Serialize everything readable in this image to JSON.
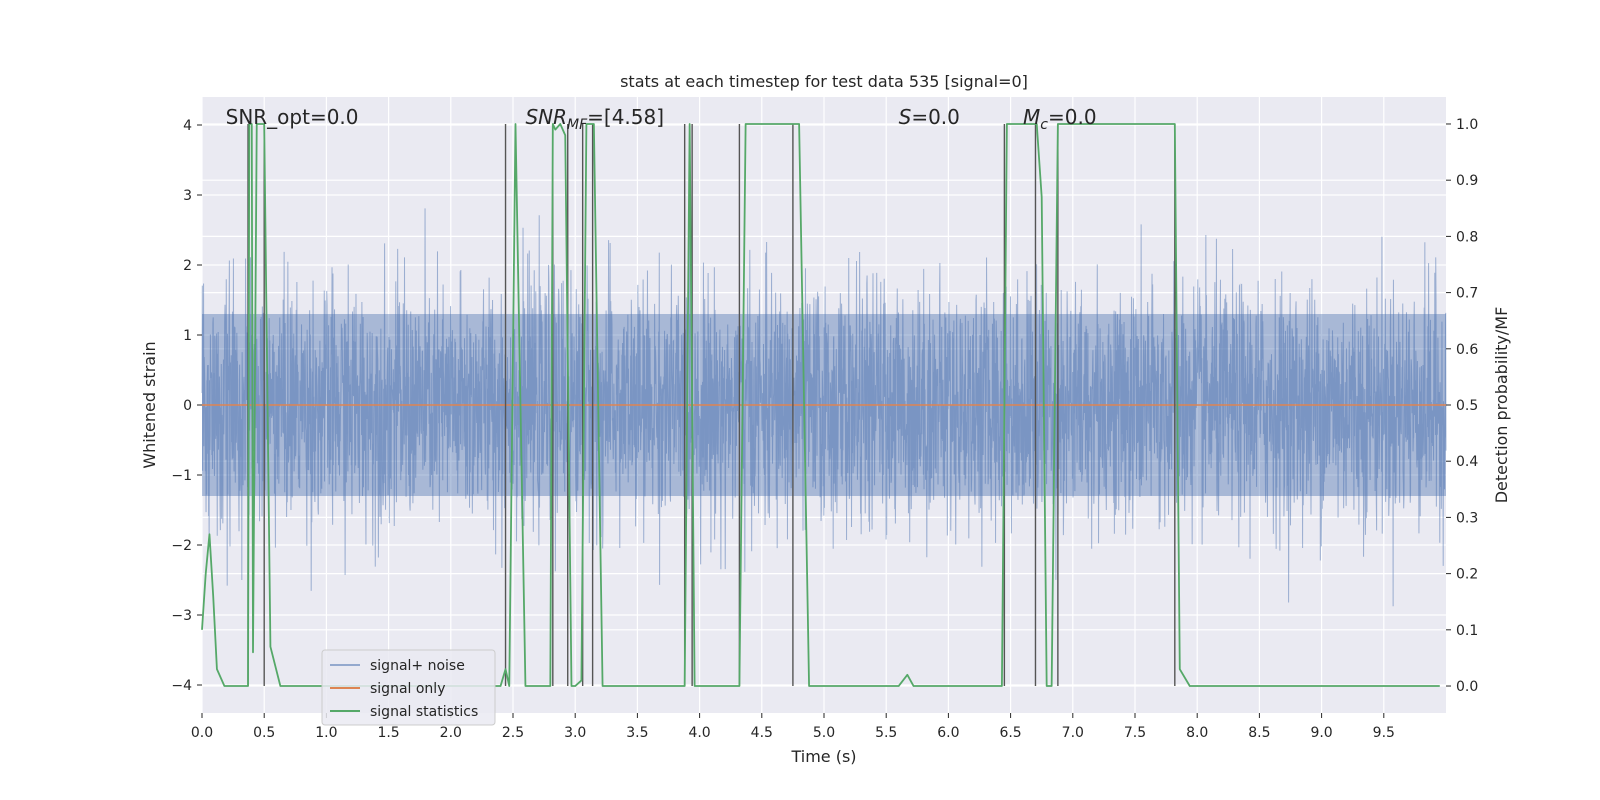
{
  "chart_data": {
    "type": "line",
    "title": "stats at each timestep for test data 535 [signal=0]",
    "xlabel": "Time (s)",
    "ylabel_left": "Whitened strain",
    "ylabel_right": "Detection probability/MF",
    "xlim": [
      0.0,
      10.0
    ],
    "ylim_left": [
      -4.4,
      4.4
    ],
    "ylim_right": [
      -0.048,
      1.048
    ],
    "x_ticks": [
      0.0,
      0.5,
      1.0,
      1.5,
      2.0,
      2.5,
      3.0,
      3.5,
      4.0,
      4.5,
      5.0,
      5.5,
      6.0,
      6.5,
      7.0,
      7.5,
      8.0,
      8.5,
      9.0,
      9.5
    ],
    "y_ticks_left": [
      -4,
      -3,
      -2,
      -1,
      0,
      1,
      2,
      3,
      4
    ],
    "y_ticks_right": [
      0.0,
      0.1,
      0.2,
      0.3,
      0.4,
      0.5,
      0.6,
      0.7,
      0.8,
      0.9,
      1.0
    ],
    "grid": true,
    "background": "#EAEAF2",
    "annotations": [
      {
        "id": "snr_opt",
        "text": "SNR_opt=0.0",
        "x": 0.19
      },
      {
        "id": "snr_mf",
        "text": "=[4.58]",
        "math": "SNR",
        "sub": "MF",
        "x": 2.6
      },
      {
        "id": "s",
        "text": "=0.0",
        "math": "S",
        "x": 5.6
      },
      {
        "id": "mc",
        "text": "=0.0",
        "math": "M",
        "sub": "c",
        "x": 6.6
      }
    ],
    "legend": {
      "placement": "lower-left",
      "entries": [
        "signal+ noise",
        "signal only",
        "signal statistics"
      ]
    },
    "series": [
      {
        "name": "signal+ noise",
        "color": "#4C72B0",
        "axis": "left",
        "kind": "dense-noise",
        "duration": 10.0,
        "typical_abs_range": [
          1.3,
          2.3
        ],
        "max_abs": 4.0
      },
      {
        "name": "signal only",
        "color": "#DD8452",
        "axis": "left",
        "x": [
          0.0,
          10.0
        ],
        "y": [
          0.0,
          0.0
        ]
      },
      {
        "name": "signal statistics",
        "color": "#55A868",
        "axis": "right",
        "x": [
          0.0,
          0.03,
          0.06,
          0.09,
          0.12,
          0.18,
          0.37,
          0.38,
          0.4,
          0.41,
          0.44,
          0.47,
          0.5,
          0.55,
          0.63,
          0.9,
          2.4,
          2.44,
          2.47,
          2.52,
          2.6,
          2.7,
          2.8,
          2.82,
          2.84,
          2.88,
          2.92,
          2.97,
          3.0,
          3.05,
          3.09,
          3.15,
          3.22,
          3.5,
          3.6,
          3.88,
          3.92,
          3.96,
          4.05,
          4.1,
          4.28,
          4.32,
          4.37,
          4.4,
          4.7,
          4.75,
          4.8,
          4.88,
          5.0,
          5.6,
          5.67,
          5.72,
          5.8,
          6.4,
          6.43,
          6.47,
          6.52,
          6.68,
          6.71,
          6.75,
          6.79,
          6.83,
          6.88,
          6.94,
          7.82,
          7.86,
          7.94,
          8.0,
          9.95
        ],
        "y": [
          0.1,
          0.2,
          0.27,
          0.16,
          0.03,
          0.0,
          0.0,
          1.0,
          1.0,
          0.06,
          1.0,
          1.0,
          1.0,
          0.07,
          0.0,
          0.0,
          0.0,
          0.03,
          0.0,
          1.0,
          0.0,
          0.0,
          0.0,
          1.0,
          0.99,
          1.0,
          0.98,
          0.0,
          0.0,
          0.01,
          1.0,
          1.0,
          0.0,
          0.0,
          0.0,
          0.0,
          1.0,
          0.0,
          0.0,
          0.0,
          0.0,
          0.0,
          1.0,
          1.0,
          1.0,
          1.0,
          1.0,
          0.0,
          0.0,
          0.0,
          0.02,
          0.0,
          0.0,
          0.0,
          0.0,
          1.0,
          1.0,
          1.0,
          1.0,
          0.87,
          0.0,
          0.0,
          1.0,
          1.0,
          1.0,
          0.03,
          0.0,
          0.0,
          0.0
        ]
      },
      {
        "name": "markers",
        "color": "#555555",
        "axis": "right",
        "kind": "vlines",
        "x": [
          0.37,
          0.5,
          2.44,
          2.82,
          2.94,
          3.06,
          3.14,
          3.88,
          3.94,
          4.32,
          4.75,
          6.45,
          6.7,
          6.88,
          7.82
        ],
        "y_from": 0.0,
        "y_to": 1.0
      }
    ]
  }
}
